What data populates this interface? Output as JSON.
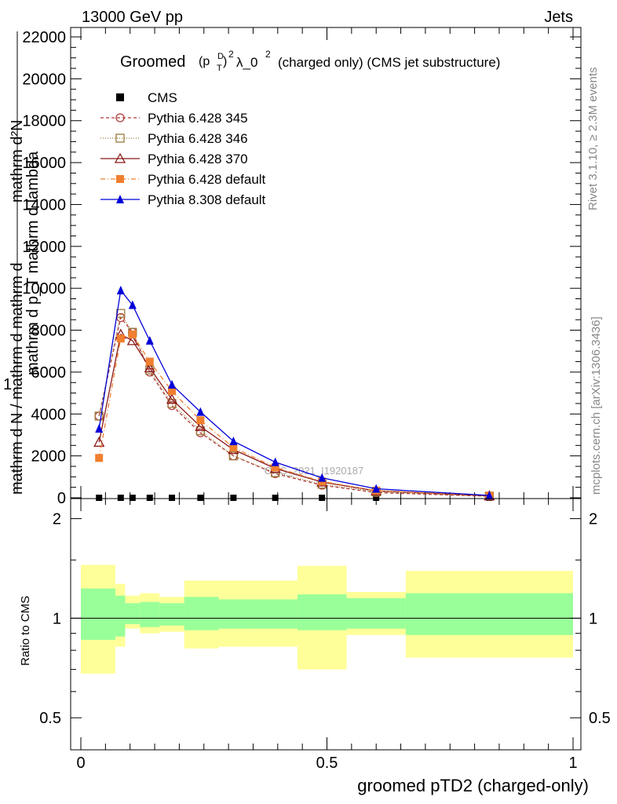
{
  "header": {
    "left": "13000 GeV pp",
    "right": "Jets"
  },
  "side_labels": {
    "rivet": "Rivet 3.1.10, ≥ 2.3M events",
    "mcplots": "mcplots.cern.ch [arXiv:1306.3436]"
  },
  "watermark": "CMS_2021_I1920187",
  "chart_data": [
    {
      "type": "line",
      "title": {
        "prefix": "Groomed",
        "p": "(p",
        "sub_T": "T",
        "sup_D": "D",
        "sup_2": "2",
        "lambda": "λ_0",
        "lambda_sup": "2",
        "suffix": "(charged only) (CMS jet substructure)"
      },
      "ylabel_upper": "mathrm d²N",
      "ylabel_lower": "mathrm d p_T mathrm d lambda",
      "ylabel2_upper": "1",
      "ylabel2_lower": "mathrm d N / mathrm d mathrm d",
      "yticks": [
        "0",
        "2000",
        "4000",
        "6000",
        "8000",
        "10000",
        "12000",
        "14000",
        "16000",
        "18000",
        "20000",
        "22000"
      ],
      "ylim": [
        0,
        22500
      ],
      "xlim": [
        0,
        1
      ],
      "legend": [
        {
          "label": "CMS",
          "color": "#000000",
          "marker": "square-filled",
          "dash": ""
        },
        {
          "label": "Pythia 6.428 345",
          "color": "#b03a3a",
          "marker": "circle-open",
          "dash": "4,3"
        },
        {
          "label": "Pythia 6.428 346",
          "color": "#9c7a3c",
          "marker": "square-open",
          "dash": "1,2"
        },
        {
          "label": "Pythia 6.428 370",
          "color": "#8b1a1a",
          "marker": "triangle-open",
          "dash": ""
        },
        {
          "label": "Pythia 6.428 default",
          "color": "#f07f2f",
          "marker": "square-filled",
          "dash": "6,3,1,3"
        },
        {
          "label": "Pythia 8.308 default",
          "color": "#0000d8",
          "marker": "triangle-filled",
          "dash": ""
        }
      ],
      "x": [
        0.037,
        0.081,
        0.105,
        0.14,
        0.185,
        0.243,
        0.31,
        0.395,
        0.49,
        0.6,
        0.83
      ],
      "series": [
        {
          "name": "CMS",
          "values": [
            0.055,
            0.06,
            0.06,
            0.05,
            0.035,
            0.025,
            0.015,
            0.01,
            0.005,
            0.002,
            0.001
          ]
        },
        {
          "name": "Pythia 6.428 345",
          "values": [
            3900,
            8600,
            7900,
            6000,
            4400,
            3100,
            2000,
            1150,
            600,
            250,
            70
          ]
        },
        {
          "name": "Pythia 6.428 346",
          "values": [
            3900,
            8800,
            7900,
            6100,
            4500,
            3200,
            2000,
            1200,
            650,
            280,
            80
          ]
        },
        {
          "name": "Pythia 6.428 370",
          "values": [
            2650,
            7800,
            7500,
            6200,
            4700,
            3400,
            2300,
            1400,
            750,
            330,
            90
          ]
        },
        {
          "name": "Pythia 6.428 default",
          "values": [
            1900,
            7600,
            7800,
            6500,
            5100,
            3700,
            2400,
            1450,
            780,
            340,
            100
          ]
        },
        {
          "name": "Pythia 8.308 default",
          "values": [
            3300,
            9900,
            9200,
            7500,
            5400,
            4100,
            2700,
            1700,
            950,
            430,
            110
          ]
        }
      ]
    },
    {
      "type": "area",
      "ylabel": "Ratio to CMS",
      "xlabel": "groomed pTD2 (charged-only)",
      "xticks": [
        "0",
        "0.5",
        "1"
      ],
      "yticks": [
        "0.5",
        "1",
        "2"
      ],
      "ylim": [
        0.4,
        2.3
      ],
      "yscale": "log",
      "bins": [
        0,
        0.07,
        0.09,
        0.12,
        0.16,
        0.21,
        0.28,
        0.35,
        0.44,
        0.54,
        0.66,
        1.0
      ],
      "stat_band": {
        "color": "#99ff99",
        "lo": [
          0.86,
          0.88,
          0.96,
          0.94,
          0.95,
          0.92,
          0.93,
          0.93,
          0.92,
          0.93,
          0.89
        ],
        "hi": [
          1.23,
          1.17,
          1.11,
          1.12,
          1.11,
          1.16,
          1.14,
          1.14,
          1.18,
          1.15,
          1.19
        ]
      },
      "syst_band": {
        "color": "#ffff99",
        "lo": [
          0.68,
          0.82,
          0.93,
          0.9,
          0.91,
          0.81,
          0.82,
          0.82,
          0.7,
          0.89,
          0.76
        ],
        "hi": [
          1.45,
          1.27,
          1.17,
          1.19,
          1.16,
          1.3,
          1.3,
          1.3,
          1.44,
          1.2,
          1.39
        ]
      },
      "reference": 1
    }
  ]
}
